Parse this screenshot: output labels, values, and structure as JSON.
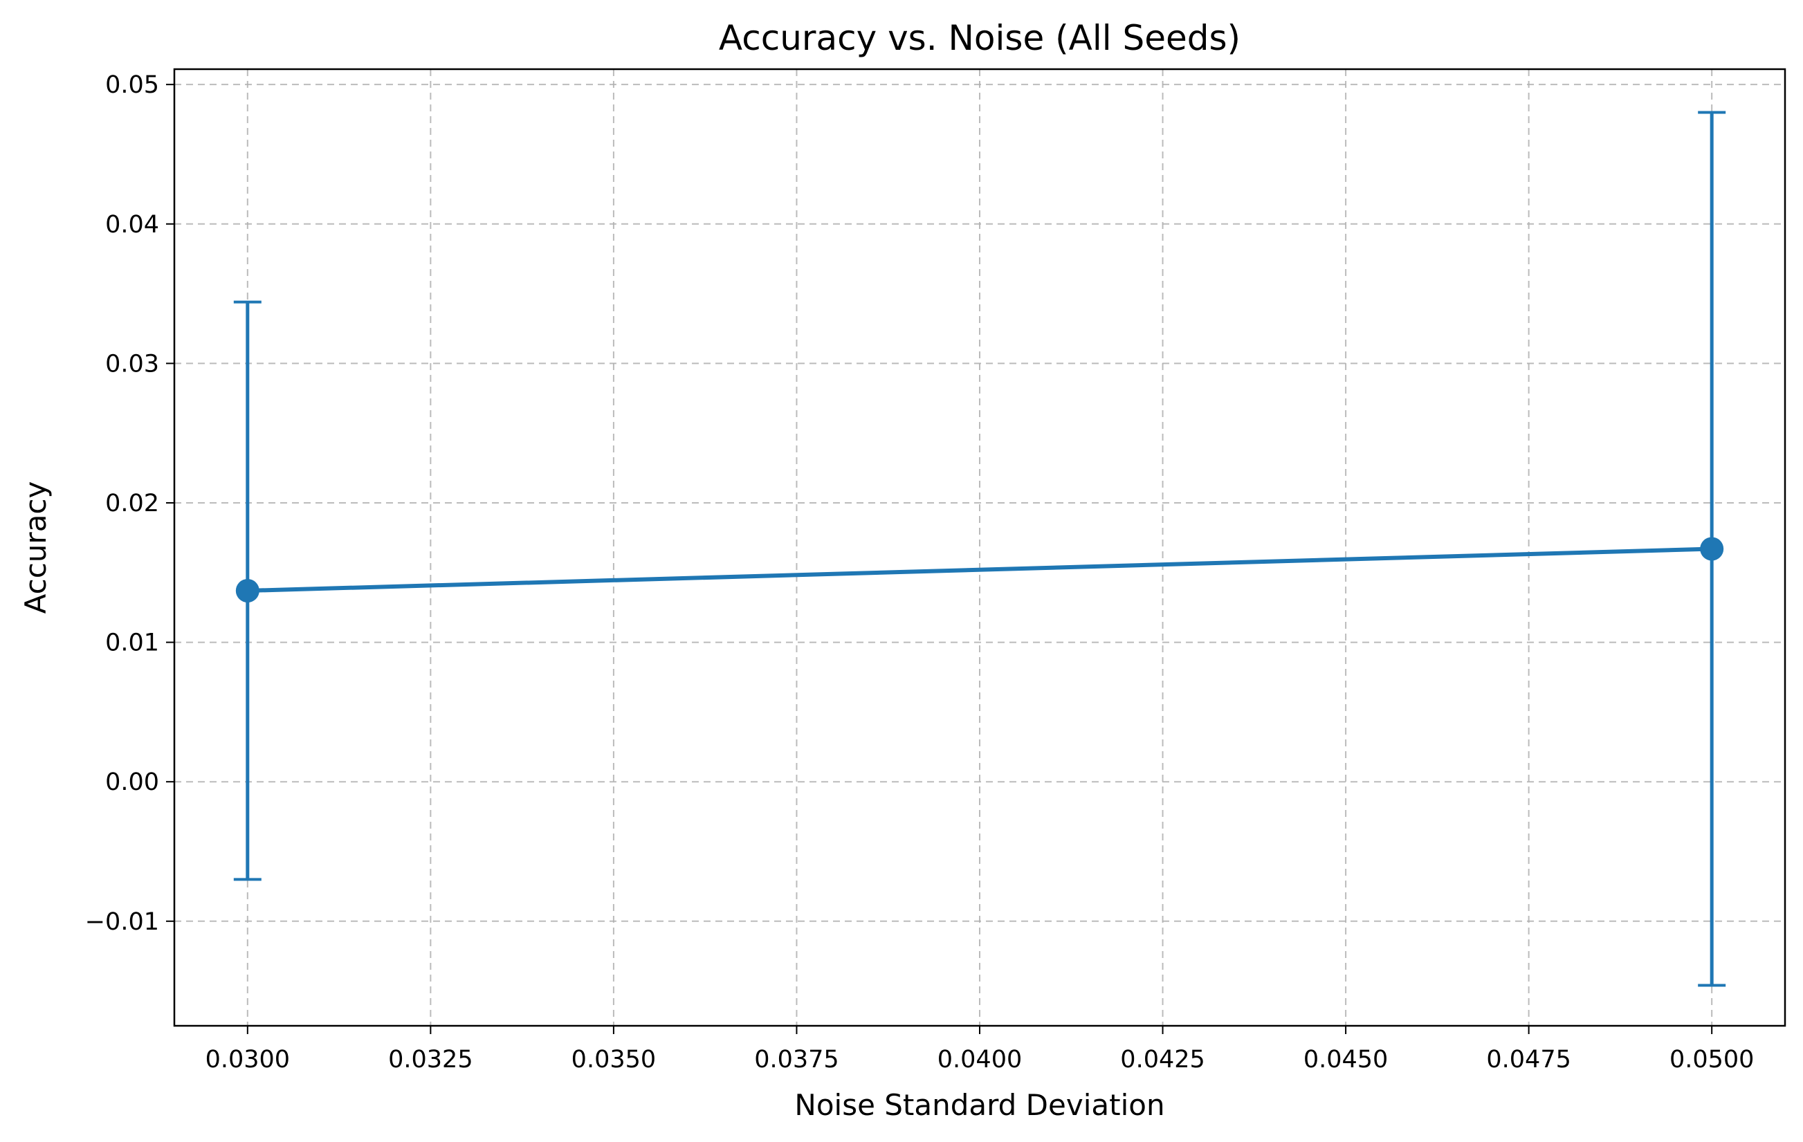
{
  "chart_data": {
    "type": "line",
    "title": "Accuracy vs. Noise (All Seeds)",
    "xlabel": "Noise Standard Deviation",
    "ylabel": "Accuracy",
    "xlim": [
      0.029,
      0.051
    ],
    "ylim": [
      -0.0175,
      0.0511
    ],
    "x_ticks": [
      0.03,
      0.0325,
      0.035,
      0.0375,
      0.04,
      0.0425,
      0.045,
      0.0475,
      0.05
    ],
    "x_tick_labels": [
      "0.0300",
      "0.0325",
      "0.0350",
      "0.0375",
      "0.0400",
      "0.0425",
      "0.0450",
      "0.0475",
      "0.0500"
    ],
    "y_ticks": [
      -0.01,
      0.0,
      0.01,
      0.02,
      0.03,
      0.04,
      0.05
    ],
    "y_tick_labels": [
      "−0.01",
      "0.00",
      "0.01",
      "0.02",
      "0.03",
      "0.04",
      "0.05"
    ],
    "grid": true,
    "series": [
      {
        "x": [
          0.03,
          0.05
        ],
        "y": [
          0.0137,
          0.0167
        ],
        "yerr": [
          0.0207,
          0.0313
        ],
        "color": "#1f77b4"
      }
    ]
  }
}
